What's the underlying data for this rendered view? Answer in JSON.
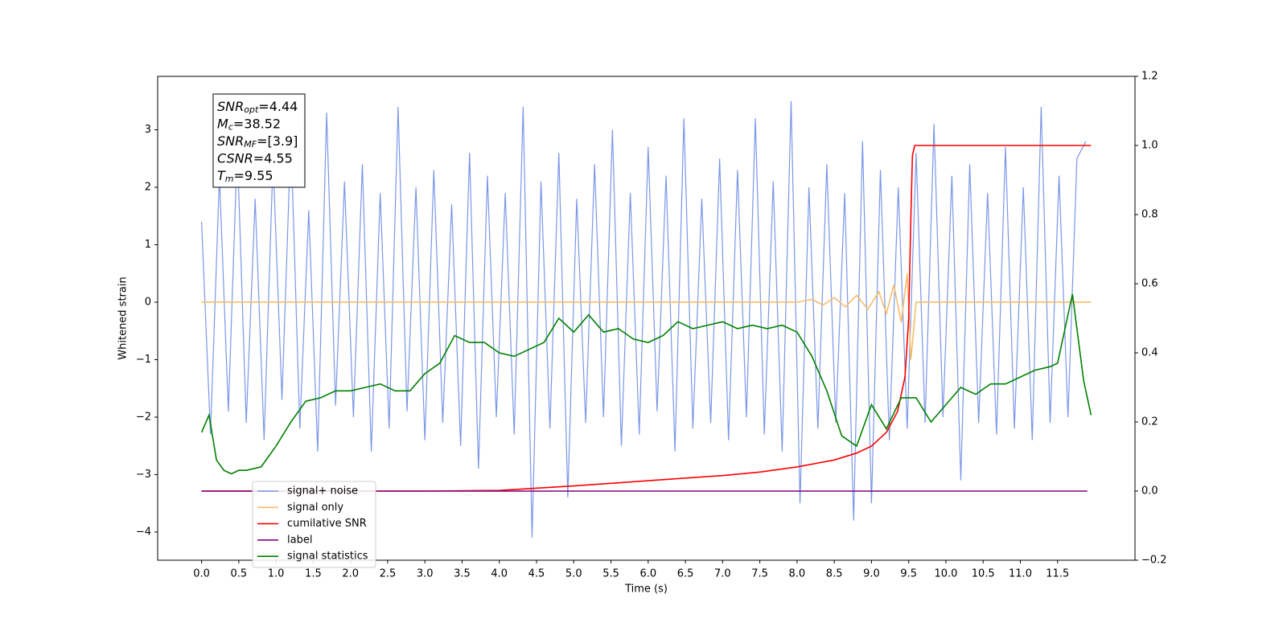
{
  "chart_data": {
    "type": "line",
    "xlabel": "Time (s)",
    "ylabel": "Whitened strain",
    "xlim": [
      -0.59,
      12.54
    ],
    "ylim": [
      -4.49,
      3.93
    ],
    "y2lim": [
      -0.2,
      1.2
    ],
    "xticks": [
      {
        "value": 0,
        "label": "0.0"
      },
      0.5,
      {
        "value": 1,
        "label": "1.0"
      },
      1.5,
      {
        "value": 2,
        "label": "2.0"
      },
      2.5,
      {
        "value": 3,
        "label": "3.0"
      },
      3.5,
      {
        "value": 4,
        "label": "4.0"
      },
      4.5,
      {
        "value": 5,
        "label": "5.0"
      },
      5.5,
      {
        "value": 6,
        "label": "6.0"
      },
      6.5,
      {
        "value": 7,
        "label": "7.0"
      },
      7.5,
      {
        "value": 8,
        "label": "8.0"
      },
      8.5,
      {
        "value": 9,
        "label": "9.0"
      },
      9.5,
      {
        "value": 10,
        "label": "10.0"
      },
      10.5,
      {
        "value": 11,
        "label": "11.0"
      },
      11.5
    ],
    "yticks": [
      {
        "value": -4,
        "label": "−4"
      },
      {
        "value": -3,
        "label": "−3"
      },
      {
        "value": -2,
        "label": "−2"
      },
      {
        "value": -1,
        "label": "−1"
      },
      0,
      1,
      2,
      3
    ],
    "y2ticks": [
      {
        "value": -0.2,
        "label": "−0.2"
      },
      {
        "value": 0,
        "label": "0.0"
      },
      0.2,
      0.4,
      0.6,
      0.8,
      {
        "value": 1,
        "label": "1.0"
      },
      1.2
    ],
    "annotation": [
      {
        "base": "SNR",
        "sub": "opt",
        "value": "=4.44"
      },
      {
        "base": "M",
        "sub": "c",
        "value": "=38.52"
      },
      {
        "base": "SNR",
        "sub": "MF",
        "value": "=[3.9]"
      },
      {
        "base": "CSNR",
        "value": "=4.55"
      },
      {
        "base": "T",
        "sub": "m",
        "value": "=9.55"
      }
    ],
    "series": [
      {
        "name": "signal+ noise",
        "color": "#7b96e8",
        "x": [
          0,
          0.12,
          0.24,
          0.36,
          0.48,
          0.6,
          0.72,
          0.84,
          0.96,
          1.08,
          1.2,
          1.32,
          1.44,
          1.56,
          1.68,
          1.8,
          1.92,
          2.04,
          2.16,
          2.28,
          2.4,
          2.52,
          2.64,
          2.76,
          2.88,
          3.0,
          3.12,
          3.24,
          3.36,
          3.48,
          3.6,
          3.72,
          3.84,
          3.96,
          4.08,
          4.2,
          4.32,
          4.44,
          4.56,
          4.68,
          4.8,
          4.92,
          5.04,
          5.16,
          5.28,
          5.4,
          5.52,
          5.64,
          5.76,
          5.88,
          6.0,
          6.12,
          6.24,
          6.36,
          6.48,
          6.6,
          6.72,
          6.84,
          6.96,
          7.08,
          7.2,
          7.32,
          7.44,
          7.56,
          7.68,
          7.8,
          7.92,
          8.04,
          8.16,
          8.28,
          8.4,
          8.52,
          8.64,
          8.76,
          8.88,
          9.0,
          9.12,
          9.24,
          9.36,
          9.48,
          9.6,
          9.72,
          9.84,
          9.96,
          10.08,
          10.2,
          10.32,
          10.44,
          10.56,
          10.68,
          10.8,
          10.92,
          11.04,
          11.16,
          11.28,
          11.4,
          11.52,
          11.64,
          11.76,
          11.88
        ],
        "values": [
          1.4,
          -2.3,
          2.2,
          -1.9,
          2.7,
          -2.1,
          1.8,
          -2.4,
          2.5,
          -1.7,
          2.9,
          -2.2,
          1.6,
          -2.6,
          3.3,
          -1.8,
          2.1,
          -2.0,
          2.4,
          -2.6,
          1.9,
          -2.2,
          3.4,
          -1.9,
          2.0,
          -2.4,
          2.3,
          -2.1,
          1.7,
          -2.5,
          2.6,
          -2.9,
          2.2,
          -2.0,
          1.9,
          -2.3,
          3.4,
          -4.1,
          2.1,
          -2.2,
          2.6,
          -3.4,
          1.8,
          -2.1,
          2.4,
          -2.0,
          3.0,
          -2.5,
          1.9,
          -2.3,
          2.7,
          -1.9,
          2.2,
          -2.6,
          3.2,
          -2.2,
          1.8,
          -2.1,
          2.5,
          -2.4,
          2.3,
          -2.0,
          3.2,
          -2.3,
          2.1,
          -2.6,
          3.5,
          -3.5,
          2.0,
          -2.2,
          2.4,
          -2.1,
          1.9,
          -3.8,
          2.8,
          -3.5,
          2.3,
          -2.4,
          2.0,
          -2.2,
          2.6,
          -2.1,
          3.1,
          -2.0,
          2.2,
          -3.1,
          2.4,
          -2.1,
          1.9,
          -2.3,
          2.7,
          -2.2,
          2.0,
          -2.4,
          3.4,
          -2.1,
          2.2,
          -2.0,
          2.5,
          2.8
        ]
      },
      {
        "name": "signal only",
        "color": "#f5bd6e",
        "x": [
          0,
          8.0,
          8.2,
          8.35,
          8.5,
          8.65,
          8.8,
          8.95,
          9.1,
          9.2,
          9.3,
          9.4,
          9.48,
          9.53,
          9.6,
          11.95
        ],
        "values": [
          0,
          0,
          0.05,
          -0.05,
          0.08,
          -0.08,
          0.12,
          -0.12,
          0.18,
          -0.2,
          0.3,
          -0.35,
          0.5,
          -1.0,
          0,
          0
        ]
      },
      {
        "name": "cumilative SNR",
        "color": "#ff0000",
        "axis": "y2",
        "x": [
          0,
          3.0,
          4.0,
          5.0,
          6.0,
          7.0,
          7.5,
          8.0,
          8.5,
          8.8,
          9.0,
          9.2,
          9.35,
          9.45,
          9.5,
          9.53,
          9.55,
          9.58,
          11.95
        ],
        "values": [
          0,
          0,
          0.002,
          0.015,
          0.03,
          0.045,
          0.055,
          0.07,
          0.09,
          0.11,
          0.13,
          0.17,
          0.23,
          0.33,
          0.5,
          0.8,
          0.97,
          1.0,
          1.0
        ]
      },
      {
        "name": "label",
        "color": "#800080",
        "axis": "y2",
        "x": [
          0,
          11.9
        ],
        "values": [
          0,
          0
        ]
      },
      {
        "name": "signal statistics",
        "color": "#008000",
        "axis": "y2",
        "x": [
          0,
          0.1,
          0.2,
          0.3,
          0.4,
          0.5,
          0.6,
          0.8,
          1.0,
          1.2,
          1.4,
          1.6,
          1.8,
          2.0,
          2.2,
          2.4,
          2.6,
          2.8,
          3.0,
          3.2,
          3.4,
          3.6,
          3.8,
          4.0,
          4.2,
          4.4,
          4.6,
          4.8,
          5.0,
          5.2,
          5.4,
          5.6,
          5.8,
          6.0,
          6.2,
          6.4,
          6.6,
          6.8,
          7.0,
          7.2,
          7.4,
          7.6,
          7.8,
          8.0,
          8.2,
          8.4,
          8.6,
          8.8,
          9.0,
          9.2,
          9.4,
          9.6,
          9.8,
          10.0,
          10.2,
          10.4,
          10.6,
          10.8,
          11.0,
          11.2,
          11.4,
          11.5,
          11.7,
          11.85,
          11.95
        ],
        "values": [
          0.17,
          0.22,
          0.09,
          0.06,
          0.05,
          0.06,
          0.06,
          0.07,
          0.13,
          0.2,
          0.26,
          0.27,
          0.29,
          0.29,
          0.3,
          0.31,
          0.29,
          0.29,
          0.34,
          0.37,
          0.45,
          0.43,
          0.43,
          0.4,
          0.39,
          0.41,
          0.43,
          0.5,
          0.46,
          0.51,
          0.46,
          0.47,
          0.44,
          0.43,
          0.45,
          0.49,
          0.47,
          0.48,
          0.49,
          0.47,
          0.48,
          0.47,
          0.48,
          0.46,
          0.39,
          0.29,
          0.16,
          0.13,
          0.25,
          0.18,
          0.27,
          0.27,
          0.2,
          0.25,
          0.3,
          0.28,
          0.31,
          0.31,
          0.33,
          0.35,
          0.36,
          0.37,
          0.57,
          0.32,
          0.22
        ]
      }
    ]
  }
}
